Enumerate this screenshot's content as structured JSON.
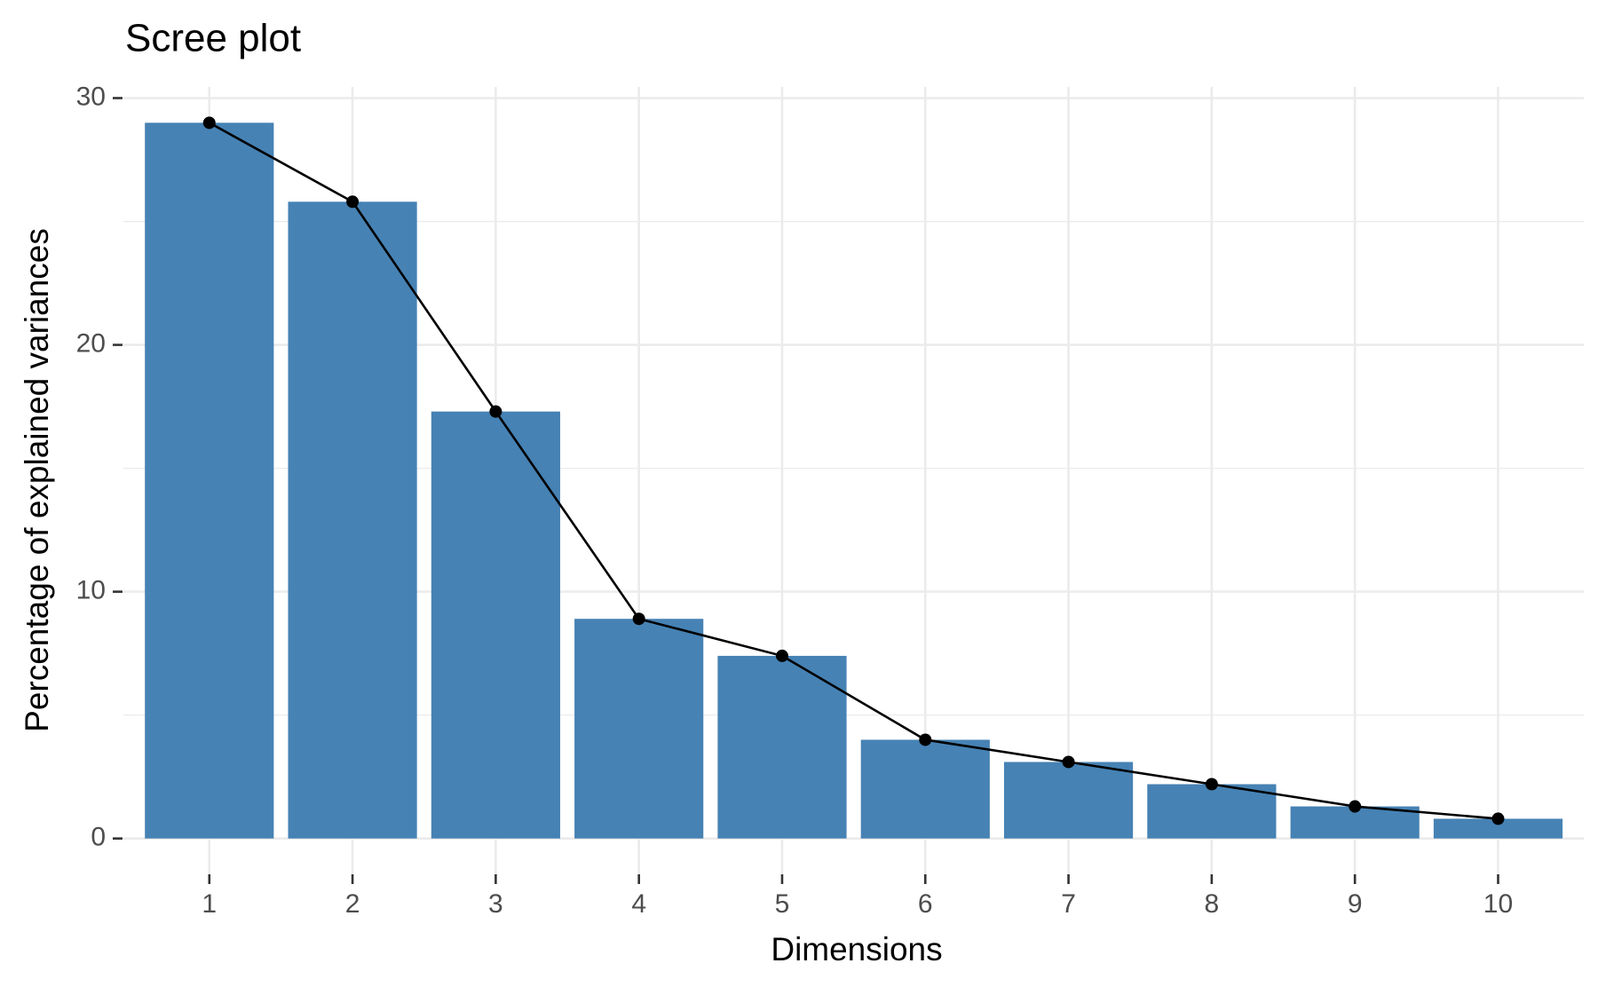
{
  "chart_data": {
    "type": "bar_line",
    "title": "Scree plot",
    "x_label": "Dimensions",
    "y_label": "Percentage of explained variances",
    "categories": [
      "1",
      "2",
      "3",
      "4",
      "5",
      "6",
      "7",
      "8",
      "9",
      "10"
    ],
    "values": [
      29.0,
      25.8,
      17.3,
      8.9,
      7.4,
      4.0,
      3.1,
      2.2,
      1.3,
      0.8
    ],
    "color": "#4682b4",
    "line_color": "#000000",
    "ylim": [
      -1.45,
      30.45
    ],
    "yticks": [
      0,
      10,
      20,
      30
    ],
    "y_minor_grid": [
      5,
      15,
      25
    ],
    "grid": true
  }
}
